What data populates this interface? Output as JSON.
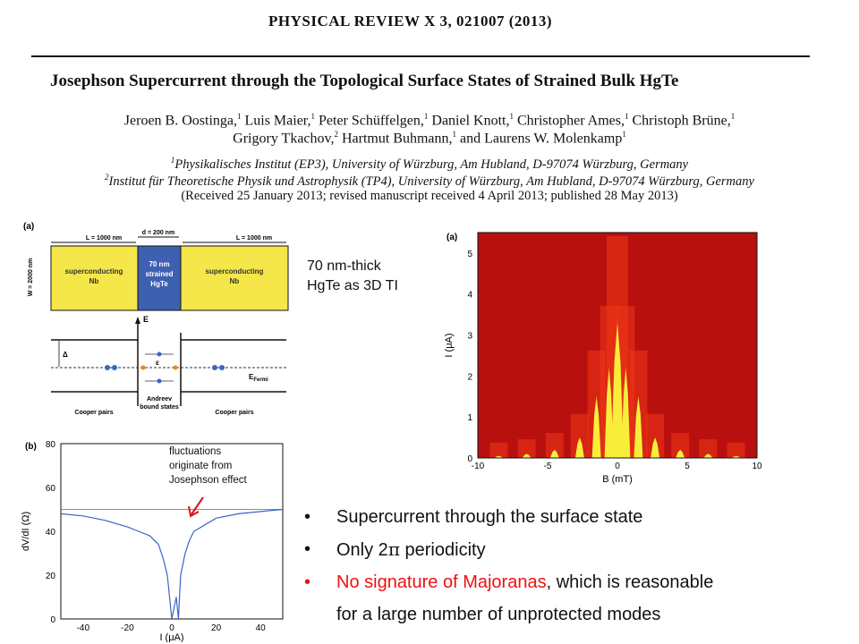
{
  "journal": "PHYSICAL REVIEW X   3, 021007 (2013)",
  "title": "Josephson Supercurrent through the Topological Surface States of Strained Bulk HgTe",
  "authors": {
    "line1": [
      "Jeroen B. Oostinga,",
      "Luis Maier,",
      "Peter Schüffelgen,",
      "Daniel Knott,",
      "Christopher Ames,",
      "Christoph Brüne,"
    ],
    "line1_sups": [
      "1",
      "1",
      "1",
      "1",
      "1",
      "1"
    ],
    "line2": [
      "Grigory Tkachov,",
      "Hartmut Buhmann,",
      "and Laurens W. Molenkamp"
    ],
    "line2_sups": [
      "2",
      "1",
      "1"
    ]
  },
  "affiliations": {
    "sup1": "1",
    "aff1": "Physikalisches Institut (EP3), University of Würzburg, Am Hubland, D-97074 Würzburg, Germany",
    "sup2": "2",
    "aff2": "Institut für Theoretische Physik und Astrophysik (TP4), University of Würzburg, Am Hubland, D-97074 Würzburg, Germany"
  },
  "received": "(Received 25 January 2013; revised manuscript received 4 April 2013; published 28 May 2013)",
  "schematic": {
    "panel": "(a)",
    "L_left": "L = 1000 nm",
    "d_mid": "d = 200 nm",
    "L_right": "L = 1000 nm",
    "W": "W = 2000 nm",
    "sc_left": [
      "superconducting",
      "Nb"
    ],
    "center": [
      "70 nm",
      "strained",
      "HgTe"
    ],
    "sc_right": [
      "superconducting",
      "Nb"
    ],
    "E": "E",
    "delta": "Δ",
    "eps": "ε",
    "efermi": "E",
    "efermi_sub": "Fermi",
    "cooper_left": "Cooper pairs",
    "andreev": [
      "Andreev",
      "bound states"
    ],
    "cooper_right": "Cooper pairs",
    "colors": {
      "sc": "#f5e64a",
      "center": "#3f5fb0",
      "border": "#111"
    }
  },
  "note_ti": [
    "70 nm-thick",
    "HgTe as 3D TI"
  ],
  "chart_data": [
    {
      "type": "heatmap",
      "panel": "(a)",
      "xlabel": "B (mT)",
      "ylabel": "I (μA)",
      "xlim": [
        -10,
        10
      ],
      "ylim": [
        0,
        5.5
      ],
      "xticks": [
        "-10",
        "-5",
        "0",
        "5",
        "10"
      ],
      "yticks": [
        "0",
        "1",
        "2",
        "3",
        "4",
        "5"
      ],
      "peaks_B": [
        -8.5,
        -6.5,
        -4.5,
        -2.7,
        -1.5,
        -0.6,
        0,
        0.6,
        1.5,
        2.7,
        4.5,
        6.5,
        8.5
      ],
      "peaks_Ic": [
        0.05,
        0.1,
        0.2,
        0.5,
        1.5,
        2.2,
        3.3,
        2.2,
        1.5,
        0.5,
        0.2,
        0.1,
        0.05
      ],
      "colors": {
        "background": "#b80f0f",
        "high": "#f03818",
        "supercurrent": "#f8ee3a"
      }
    },
    {
      "type": "line",
      "panel": "(b)",
      "xlabel": "I (μA)",
      "ylabel": "dV/dI (Ω)",
      "xlim": [
        -50,
        50
      ],
      "ylim": [
        0,
        80
      ],
      "xticks": [
        "-40",
        "-20",
        "0",
        "20",
        "40"
      ],
      "yticks": [
        "0",
        "20",
        "40",
        "60",
        "80"
      ],
      "x": [
        -50,
        -40,
        -30,
        -20,
        -15,
        -10,
        -6,
        -4,
        -2,
        0,
        2,
        3,
        4,
        6,
        8,
        10,
        15,
        20,
        30,
        40,
        50
      ],
      "y": [
        48,
        47,
        45,
        42,
        40,
        38,
        34,
        28,
        20,
        0,
        10,
        0,
        20,
        30,
        36,
        40,
        43,
        46,
        48,
        49,
        50
      ],
      "normal_resistance": 50,
      "colors": {
        "line": "#3a64c8",
        "ref": "#d33"
      }
    }
  ],
  "note_fluct": [
    "fluctuations",
    "originate from",
    "Josephson effect"
  ],
  "arrow_color": "#e01010",
  "bullets": {
    "dot": "•",
    "b1": "Supercurrent through the surface state",
    "b2_pre": "Only 2",
    "b2_pi": "π",
    "b2_post": " periodicity",
    "b3_red": "No signature of Majoranas",
    "b3_black": ", which is reasonable",
    "b3_cont": "for a large number of unprotected modes"
  }
}
